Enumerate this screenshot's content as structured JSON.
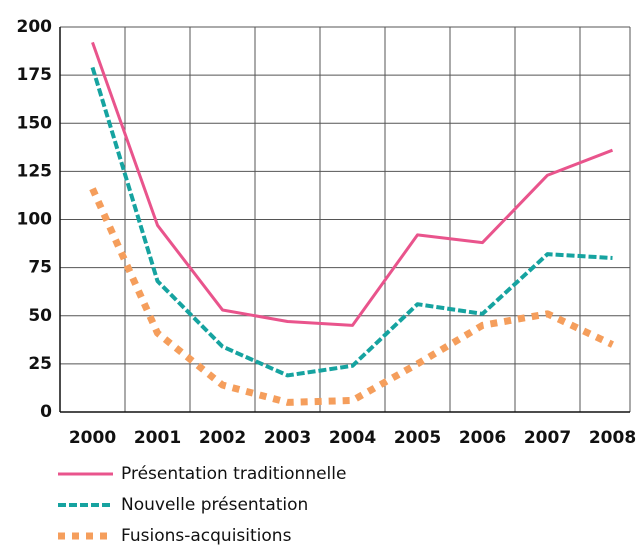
{
  "chart_data": {
    "type": "line",
    "categories": [
      "2000",
      "2001",
      "2002",
      "2003",
      "2004",
      "2005",
      "2006",
      "2007",
      "2008"
    ],
    "series": [
      {
        "name": "Présentation traditionnelle",
        "color": "#e9548c",
        "dash": "solid",
        "values": [
          192,
          97,
          53,
          47,
          45,
          92,
          88,
          123,
          136
        ]
      },
      {
        "name": "Nouvelle présentation",
        "color": "#16a3a0",
        "dash": "dashed",
        "values": [
          179,
          68,
          34,
          19,
          24,
          56,
          51,
          82,
          80
        ]
      },
      {
        "name": "Fusions-acquisitions",
        "color": "#f59e5c",
        "dash": "dotted",
        "values": [
          116,
          41,
          14,
          5,
          6,
          25,
          45,
          51,
          35
        ]
      }
    ],
    "ylim": [
      0,
      200
    ],
    "yticks": [
      0,
      25,
      50,
      75,
      100,
      125,
      150,
      175,
      200
    ],
    "grid": true
  }
}
